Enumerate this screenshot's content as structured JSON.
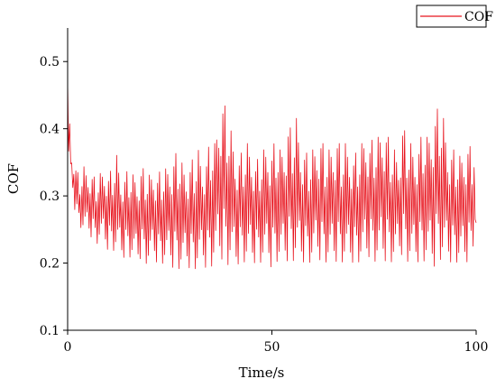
{
  "chart_data": {
    "type": "line",
    "xlabel": "Time/s",
    "ylabel": "COF",
    "xlim": [
      0,
      100
    ],
    "ylim": [
      0.1,
      0.55
    ],
    "x_ticks": [
      0,
      50,
      100
    ],
    "y_ticks": [
      0.1,
      0.2,
      0.3,
      0.4,
      0.5
    ],
    "grid": false,
    "legend_position": "top-right",
    "series": [
      {
        "name": "COF",
        "color": "#e8141e",
        "sample_interval_s": 1,
        "x": [
          0,
          1,
          2,
          3,
          4,
          5,
          6,
          7,
          8,
          9,
          10,
          11,
          12,
          13,
          14,
          15,
          16,
          17,
          18,
          19,
          20,
          21,
          22,
          23,
          24,
          25,
          26,
          27,
          28,
          29,
          30,
          31,
          32,
          33,
          34,
          35,
          36,
          37,
          38,
          39,
          40,
          41,
          42,
          43,
          44,
          45,
          46,
          47,
          48,
          49,
          50,
          51,
          52,
          53,
          54,
          55,
          56,
          57,
          58,
          59,
          60,
          61,
          62,
          63,
          64,
          65,
          66,
          67,
          68,
          69,
          70,
          71,
          72,
          73,
          74,
          75,
          76,
          77,
          78,
          79,
          80,
          81,
          82,
          83,
          84,
          85,
          86,
          87,
          88,
          89,
          90,
          91,
          92,
          93,
          94,
          95,
          96,
          97,
          98,
          99,
          100
        ],
        "upper": [
          0.48,
          0.36,
          0.35,
          0.33,
          0.35,
          0.34,
          0.34,
          0.33,
          0.34,
          0.35,
          0.34,
          0.35,
          0.37,
          0.34,
          0.34,
          0.35,
          0.34,
          0.34,
          0.35,
          0.35,
          0.34,
          0.35,
          0.34,
          0.35,
          0.35,
          0.36,
          0.37,
          0.38,
          0.36,
          0.35,
          0.36,
          0.37,
          0.38,
          0.36,
          0.37,
          0.4,
          0.39,
          0.44,
          0.46,
          0.44,
          0.41,
          0.38,
          0.37,
          0.38,
          0.39,
          0.38,
          0.36,
          0.37,
          0.38,
          0.39,
          0.38,
          0.4,
          0.38,
          0.39,
          0.42,
          0.41,
          0.43,
          0.39,
          0.38,
          0.37,
          0.38,
          0.39,
          0.4,
          0.38,
          0.38,
          0.39,
          0.4,
          0.38,
          0.39,
          0.38,
          0.37,
          0.38,
          0.39,
          0.41,
          0.39,
          0.4,
          0.4,
          0.42,
          0.41,
          0.39,
          0.38,
          0.37,
          0.42,
          0.4,
          0.39,
          0.38,
          0.39,
          0.41,
          0.4,
          0.42,
          0.44,
          0.45,
          0.43,
          0.39,
          0.38,
          0.38,
          0.37,
          0.38,
          0.39,
          0.38,
          0.39
        ],
        "lower": [
          0.34,
          0.32,
          0.26,
          0.25,
          0.24,
          0.24,
          0.23,
          0.22,
          0.23,
          0.22,
          0.21,
          0.21,
          0.21,
          0.2,
          0.2,
          0.2,
          0.2,
          0.19,
          0.2,
          0.19,
          0.19,
          0.2,
          0.19,
          0.19,
          0.19,
          0.19,
          0.18,
          0.18,
          0.18,
          0.19,
          0.18,
          0.18,
          0.18,
          0.19,
          0.18,
          0.18,
          0.19,
          0.19,
          0.19,
          0.18,
          0.19,
          0.18,
          0.19,
          0.19,
          0.19,
          0.19,
          0.19,
          0.19,
          0.19,
          0.19,
          0.18,
          0.19,
          0.19,
          0.19,
          0.19,
          0.19,
          0.19,
          0.19,
          0.19,
          0.19,
          0.19,
          0.2,
          0.19,
          0.19,
          0.19,
          0.19,
          0.19,
          0.19,
          0.19,
          0.19,
          0.19,
          0.19,
          0.19,
          0.19,
          0.2,
          0.19,
          0.19,
          0.19,
          0.19,
          0.19,
          0.19,
          0.2,
          0.2,
          0.19,
          0.19,
          0.19,
          0.19,
          0.19,
          0.19,
          0.18,
          0.18,
          0.19,
          0.19,
          0.19,
          0.19,
          0.19,
          0.19,
          0.19,
          0.19,
          0.2,
          0.26
        ]
      }
    ]
  }
}
